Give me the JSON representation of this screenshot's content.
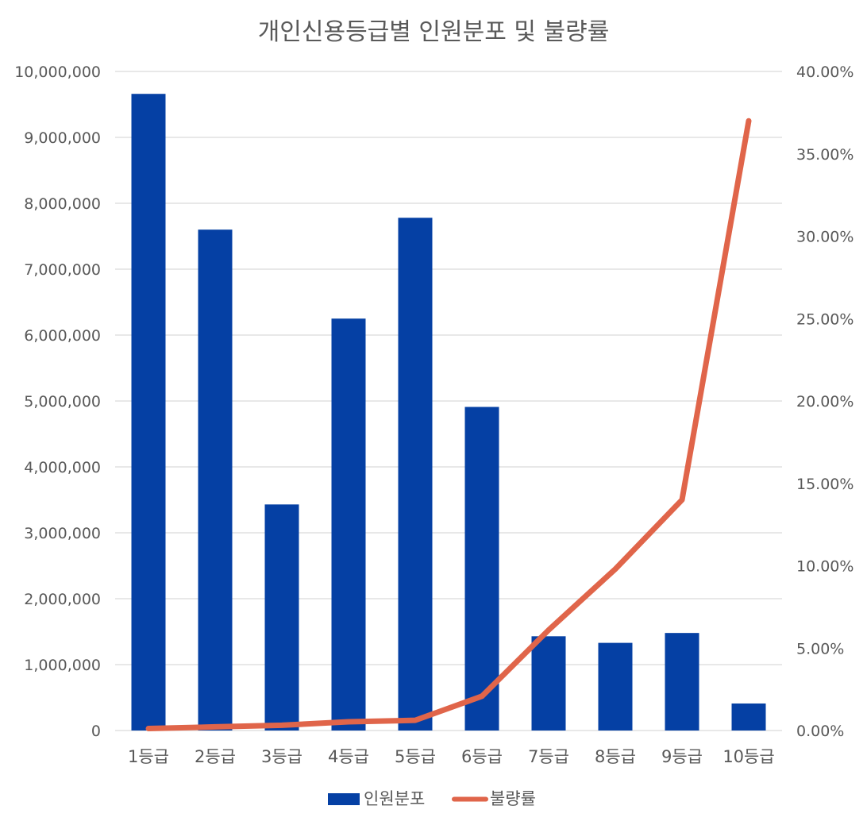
{
  "chart_data": {
    "type": "bar",
    "title": "개인신용등급별 인원분포 및 불량률",
    "categories": [
      "1등급",
      "2등급",
      "3등급",
      "4등급",
      "5등급",
      "6등급",
      "7등급",
      "8등급",
      "9등급",
      "10등급"
    ],
    "series": [
      {
        "name": "인원분포",
        "type": "bar",
        "axis": "left",
        "color": "#0540a4",
        "values": [
          9660000,
          7600000,
          3430000,
          6250000,
          7780000,
          4910000,
          1430000,
          1330000,
          1480000,
          410000
        ]
      },
      {
        "name": "불량률",
        "type": "line",
        "axis": "right",
        "color": "#e0654a",
        "values": [
          0.0012,
          0.0022,
          0.0032,
          0.0053,
          0.0062,
          0.0208,
          0.061,
          0.098,
          0.14,
          0.37
        ]
      }
    ],
    "y_left": {
      "ylim": [
        0,
        10000000
      ],
      "ticks": [
        0,
        1000000,
        2000000,
        3000000,
        4000000,
        5000000,
        6000000,
        7000000,
        8000000,
        9000000,
        10000000
      ],
      "tick_labels": [
        "0",
        "1,000,000",
        "2,000,000",
        "3,000,000",
        "4,000,000",
        "5,000,000",
        "6,000,000",
        "7,000,000",
        "8,000,000",
        "9,000,000",
        "10,000,000"
      ]
    },
    "y_right": {
      "ylim": [
        0,
        0.4
      ],
      "ticks": [
        0,
        0.05,
        0.1,
        0.15,
        0.2,
        0.25,
        0.3,
        0.35,
        0.4
      ],
      "tick_labels": [
        "0.00%",
        "5.00%",
        "10.00%",
        "15.00%",
        "20.00%",
        "25.00%",
        "30.00%",
        "35.00%",
        "40.00%"
      ]
    },
    "grid": true,
    "legend": "bottom"
  }
}
